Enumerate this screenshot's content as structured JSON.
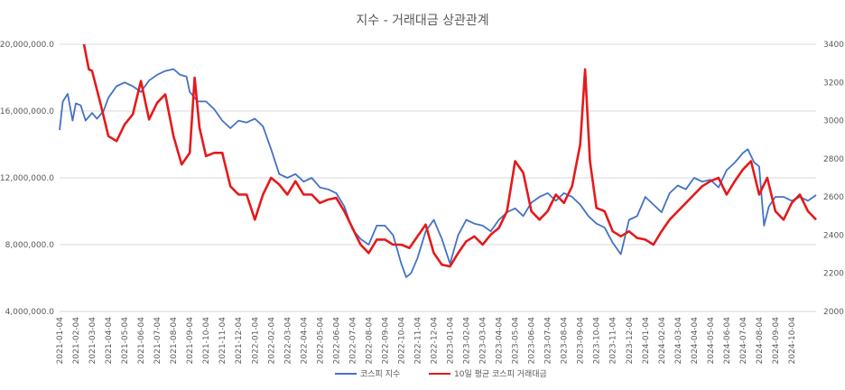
{
  "chart_data": {
    "type": "line",
    "title": "지수 - 거래대금 상관관계",
    "left_axis": {
      "ylim": [
        4000000,
        20000000
      ],
      "ticks": [
        "4,000,000.0",
        "8,000,000.0",
        "12,000,000.0",
        "16,000,000.0",
        "20,000,000.0"
      ],
      "tick_values": [
        4000000,
        8000000,
        12000000,
        16000000,
        20000000
      ]
    },
    "right_axis": {
      "ylim": [
        2000,
        3400
      ],
      "ticks": [
        "2000",
        "2200",
        "2400",
        "2600",
        "2800",
        "3000",
        "3200",
        "3400"
      ],
      "tick_values": [
        2000,
        2200,
        2400,
        2600,
        2800,
        3000,
        3200,
        3400
      ]
    },
    "x_ticks": [
      "2021-01-04",
      "2021-02-04",
      "2021-03-04",
      "2021-04-04",
      "2021-05-04",
      "2021-06-04",
      "2021-07-04",
      "2021-08-04",
      "2021-09-04",
      "2021-10-04",
      "2021-11-04",
      "2021-12-04",
      "2022-01-04",
      "2022-02-04",
      "2022-03-04",
      "2022-04-04",
      "2022-05-04",
      "2022-06-04",
      "2022-07-04",
      "2022-08-04",
      "2022-09-04",
      "2022-10-04",
      "2022-11-04",
      "2022-12-04",
      "2023-01-04",
      "2023-02-04",
      "2023-03-04",
      "2023-04-04",
      "2023-05-04",
      "2023-06-04",
      "2023-07-04",
      "2023-08-04",
      "2023-09-04",
      "2023-10-04",
      "2023-11-04",
      "2023-12-04",
      "2024-01-04",
      "2024-02-04",
      "2024-03-04",
      "2024-04-04",
      "2024-05-04",
      "2024-06-04",
      "2024-07-04",
      "2024-08-04",
      "2024-09-04",
      "2024-10-04"
    ],
    "month_index_domain": [
      0,
      46.5
    ],
    "series": [
      {
        "name": "코스피 지수",
        "axis": "right",
        "color": "#4472c4",
        "points": [
          [
            0,
            2950
          ],
          [
            0.2,
            3100
          ],
          [
            0.5,
            3140
          ],
          [
            0.8,
            3000
          ],
          [
            1,
            3090
          ],
          [
            1.3,
            3080
          ],
          [
            1.6,
            3000
          ],
          [
            2,
            3040
          ],
          [
            2.3,
            3010
          ],
          [
            2.7,
            3050
          ],
          [
            3,
            3120
          ],
          [
            3.5,
            3180
          ],
          [
            4,
            3200
          ],
          [
            4.5,
            3180
          ],
          [
            5,
            3150
          ],
          [
            5.5,
            3210
          ],
          [
            6,
            3240
          ],
          [
            6.5,
            3260
          ],
          [
            7,
            3270
          ],
          [
            7.4,
            3240
          ],
          [
            7.8,
            3230
          ],
          [
            8,
            3150
          ],
          [
            8.5,
            3100
          ],
          [
            9,
            3100
          ],
          [
            9.5,
            3060
          ],
          [
            10,
            3000
          ],
          [
            10.5,
            2960
          ],
          [
            11,
            3000
          ],
          [
            11.5,
            2990
          ],
          [
            12,
            3010
          ],
          [
            12.5,
            2970
          ],
          [
            13,
            2850
          ],
          [
            13.5,
            2720
          ],
          [
            14,
            2700
          ],
          [
            14.5,
            2720
          ],
          [
            15,
            2680
          ],
          [
            15.5,
            2700
          ],
          [
            16,
            2650
          ],
          [
            16.5,
            2640
          ],
          [
            17,
            2620
          ],
          [
            17.5,
            2550
          ],
          [
            18,
            2430
          ],
          [
            18.5,
            2380
          ],
          [
            19,
            2350
          ],
          [
            19.5,
            2450
          ],
          [
            20,
            2450
          ],
          [
            20.5,
            2400
          ],
          [
            21,
            2250
          ],
          [
            21.3,
            2180
          ],
          [
            21.6,
            2200
          ],
          [
            22,
            2280
          ],
          [
            22.5,
            2420
          ],
          [
            23,
            2480
          ],
          [
            23.5,
            2380
          ],
          [
            24,
            2250
          ],
          [
            24.5,
            2400
          ],
          [
            25,
            2480
          ],
          [
            25.5,
            2460
          ],
          [
            26,
            2450
          ],
          [
            26.5,
            2420
          ],
          [
            27,
            2480
          ],
          [
            27.5,
            2520
          ],
          [
            28,
            2540
          ],
          [
            28.5,
            2500
          ],
          [
            29,
            2570
          ],
          [
            29.5,
            2600
          ],
          [
            30,
            2620
          ],
          [
            30.5,
            2580
          ],
          [
            31,
            2620
          ],
          [
            31.5,
            2600
          ],
          [
            32,
            2560
          ],
          [
            32.5,
            2500
          ],
          [
            33,
            2460
          ],
          [
            33.5,
            2440
          ],
          [
            34,
            2360
          ],
          [
            34.5,
            2300
          ],
          [
            35,
            2480
          ],
          [
            35.5,
            2500
          ],
          [
            36,
            2600
          ],
          [
            36.5,
            2560
          ],
          [
            37,
            2520
          ],
          [
            37.5,
            2620
          ],
          [
            38,
            2660
          ],
          [
            38.5,
            2640
          ],
          [
            39,
            2700
          ],
          [
            39.5,
            2680
          ],
          [
            40,
            2690
          ],
          [
            40.5,
            2650
          ],
          [
            41,
            2740
          ],
          [
            41.5,
            2780
          ],
          [
            42,
            2830
          ],
          [
            42.3,
            2850
          ],
          [
            42.7,
            2780
          ],
          [
            43,
            2760
          ],
          [
            43.3,
            2450
          ],
          [
            43.6,
            2550
          ],
          [
            44,
            2600
          ],
          [
            44.5,
            2600
          ],
          [
            45,
            2580
          ],
          [
            45.5,
            2600
          ],
          [
            46,
            2580
          ],
          [
            46.5,
            2610
          ]
        ]
      },
      {
        "name": "10일 평균 코스피 거래대금",
        "axis": "left",
        "color": "#e41a1c",
        "points": [
          [
            1.5,
            20000000
          ],
          [
            1.8,
            18500000
          ],
          [
            2,
            18400000
          ],
          [
            2.5,
            16500000
          ],
          [
            3,
            14500000
          ],
          [
            3.5,
            14200000
          ],
          [
            4,
            15200000
          ],
          [
            4.5,
            15800000
          ],
          [
            5,
            17800000
          ],
          [
            5.5,
            15500000
          ],
          [
            6,
            16500000
          ],
          [
            6.5,
            17000000
          ],
          [
            7,
            14500000
          ],
          [
            7.5,
            12800000
          ],
          [
            8,
            13500000
          ],
          [
            8.3,
            18000000
          ],
          [
            8.6,
            15000000
          ],
          [
            9,
            13300000
          ],
          [
            9.5,
            13500000
          ],
          [
            10,
            13500000
          ],
          [
            10.5,
            11500000
          ],
          [
            11,
            11000000
          ],
          [
            11.5,
            11000000
          ],
          [
            12,
            9500000
          ],
          [
            12.5,
            11000000
          ],
          [
            13,
            12000000
          ],
          [
            13.5,
            11600000
          ],
          [
            14,
            11000000
          ],
          [
            14.5,
            11800000
          ],
          [
            15,
            11000000
          ],
          [
            15.5,
            11000000
          ],
          [
            16,
            10500000
          ],
          [
            16.5,
            10700000
          ],
          [
            17,
            10800000
          ],
          [
            17.5,
            10000000
          ],
          [
            18,
            9000000
          ],
          [
            18.5,
            8000000
          ],
          [
            19,
            7500000
          ],
          [
            19.5,
            8300000
          ],
          [
            20,
            8300000
          ],
          [
            20.5,
            8000000
          ],
          [
            21,
            8000000
          ],
          [
            21.5,
            7800000
          ],
          [
            22,
            8500000
          ],
          [
            22.5,
            9200000
          ],
          [
            23,
            7500000
          ],
          [
            23.5,
            6800000
          ],
          [
            24,
            6700000
          ],
          [
            24.5,
            7500000
          ],
          [
            25,
            8200000
          ],
          [
            25.5,
            8500000
          ],
          [
            26,
            8000000
          ],
          [
            26.5,
            8600000
          ],
          [
            27,
            9000000
          ],
          [
            27.5,
            10000000
          ],
          [
            28,
            13000000
          ],
          [
            28.5,
            12300000
          ],
          [
            29,
            10000000
          ],
          [
            29.5,
            9500000
          ],
          [
            30,
            10000000
          ],
          [
            30.5,
            11000000
          ],
          [
            31,
            10500000
          ],
          [
            31.5,
            11500000
          ],
          [
            32,
            14000000
          ],
          [
            32.3,
            18500000
          ],
          [
            32.6,
            13000000
          ],
          [
            33,
            10200000
          ],
          [
            33.5,
            10000000
          ],
          [
            34,
            8800000
          ],
          [
            34.5,
            8500000
          ],
          [
            35,
            8800000
          ],
          [
            35.5,
            8400000
          ],
          [
            36,
            8300000
          ],
          [
            36.5,
            8000000
          ],
          [
            37,
            8800000
          ],
          [
            37.5,
            9500000
          ],
          [
            38,
            10000000
          ],
          [
            38.5,
            10500000
          ],
          [
            39,
            11000000
          ],
          [
            39.5,
            11500000
          ],
          [
            40,
            11800000
          ],
          [
            40.5,
            12000000
          ],
          [
            41,
            11000000
          ],
          [
            41.5,
            11800000
          ],
          [
            42,
            12500000
          ],
          [
            42.5,
            13000000
          ],
          [
            43,
            11000000
          ],
          [
            43.5,
            12000000
          ],
          [
            44,
            10000000
          ],
          [
            44.5,
            9500000
          ],
          [
            45,
            10500000
          ],
          [
            45.5,
            11000000
          ],
          [
            46,
            10000000
          ],
          [
            46.5,
            9500000
          ]
        ]
      }
    ],
    "legend": {
      "position": "bottom",
      "items": [
        {
          "label": "코스피 지수",
          "color": "#4472c4"
        },
        {
          "label": "10일 평균 코스피 거래대금",
          "color": "#e41a1c"
        }
      ]
    }
  }
}
